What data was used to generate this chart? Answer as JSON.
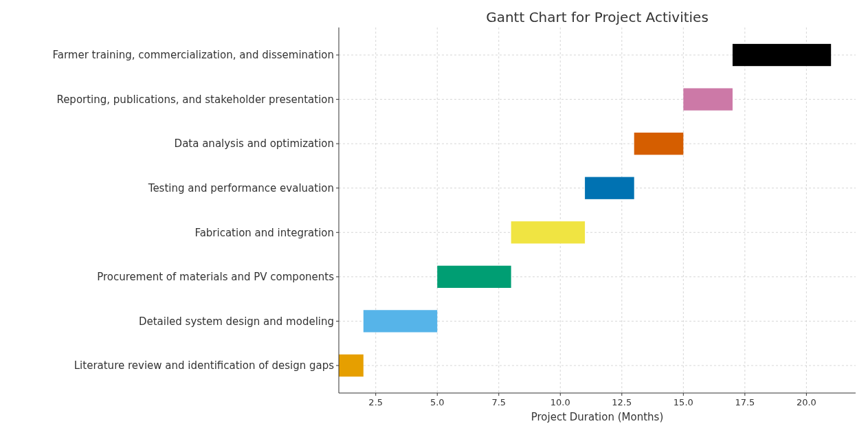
{
  "chart_data": {
    "type": "bar",
    "orientation": "horizontal",
    "title": "Gantt Chart for Project Activities",
    "xlabel": "Project Duration (Months)",
    "categories": [
      "Farmer training, commercialization, and dissemination",
      "Reporting, publications, and stakeholder presentation",
      "Data analysis and optimization",
      "Testing and performance evaluation",
      "Fabrication and integration",
      "Procurement of materials and PV components",
      "Detailed system design and modeling",
      "Literature review and identification of design gaps"
    ],
    "base": [
      17,
      15,
      13,
      11,
      8,
      5,
      2,
      1
    ],
    "values": [
      4,
      2,
      2,
      2,
      3,
      3,
      3,
      1
    ],
    "colors": [
      "#000000",
      "#cc79a7",
      "#d55e00",
      "#0072b2",
      "#f0e442",
      "#009e73",
      "#56b4e9",
      "#e69f00"
    ],
    "xlim": [
      1,
      22
    ],
    "xticks": [
      2.5,
      {
        "value": 5,
        "label": "5.0"
      },
      7.5,
      {
        "value": 10,
        "label": "10.0"
      },
      12.5,
      {
        "value": 15,
        "label": "15.0"
      },
      17.5,
      {
        "value": 20,
        "label": "20.0"
      }
    ],
    "grid": true
  }
}
